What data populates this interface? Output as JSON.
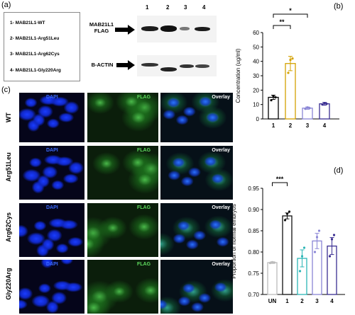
{
  "panel_labels": {
    "a": "(a)",
    "b": "(b)",
    "c": "(c)",
    "d": "(d)"
  },
  "legend": [
    "1- MAB21L1-WT",
    "2- MAB21L1-Arg51Leu",
    "3- MAB21L1-Arg62Cys",
    "4- MAB21L1-Gly220Arg"
  ],
  "blot": {
    "lanes": [
      "1",
      "2",
      "3",
      "4"
    ],
    "flag_label": "MAB21L1 FLAG",
    "actin_label": "B-ACTIN"
  },
  "micro": {
    "rows": [
      "WT",
      "Arg51Leu",
      "Arg62Cys",
      "Gly220Arg"
    ],
    "channels": [
      "DAPI",
      "FLAG",
      "Overlay"
    ]
  },
  "chart_data": [
    {
      "type": "bar",
      "panel": "b",
      "categories": [
        "1",
        "2",
        "3",
        "4"
      ],
      "values": [
        15,
        38.5,
        7.5,
        10.5
      ],
      "errors": [
        1.5,
        5,
        0.8,
        1
      ],
      "points": [
        [
          13,
          16,
          15
        ],
        [
          32,
          41,
          42
        ],
        [
          7,
          8,
          7.5
        ],
        [
          10,
          11,
          10.5
        ]
      ],
      "bar_colors": [
        "#000000",
        "#d4a200",
        "#8a86d6",
        "#3a2e92"
      ],
      "ylabel": "Concentration (ug/ml)",
      "ylim": [
        0,
        60
      ],
      "yticks": [
        0,
        10,
        20,
        30,
        40,
        50,
        60
      ],
      "significance": [
        {
          "from": "1",
          "to": "2",
          "label": "**"
        },
        {
          "from": "1",
          "to": "3",
          "label": "*"
        }
      ]
    },
    {
      "type": "bar",
      "panel": "d",
      "categories": [
        "UN",
        "1",
        "2",
        "3",
        "4"
      ],
      "values": [
        0.775,
        0.885,
        0.785,
        0.826,
        0.814
      ],
      "errors": [
        0.002,
        0.007,
        0.02,
        0.018,
        0.02
      ],
      "points": [
        [
          0.774,
          0.776,
          0.775
        ],
        [
          0.875,
          0.89,
          0.895
        ],
        [
          0.755,
          0.79,
          0.81
        ],
        [
          0.8,
          0.835,
          0.85
        ],
        [
          0.79,
          0.83,
          0.84
        ]
      ],
      "bar_colors": [
        "#bbbbbb",
        "#111111",
        "#2bb5b5",
        "#8a86d6",
        "#3a2e92"
      ],
      "ylabel": "Proportion of normal embryos",
      "ylim": [
        0.7,
        0.95
      ],
      "yticks": [
        "0.70",
        "0.75",
        "0.80",
        "0.85",
        "0.90",
        "0.95"
      ],
      "significance": [
        {
          "from": "UN",
          "to": "1",
          "label": "***"
        }
      ]
    }
  ]
}
